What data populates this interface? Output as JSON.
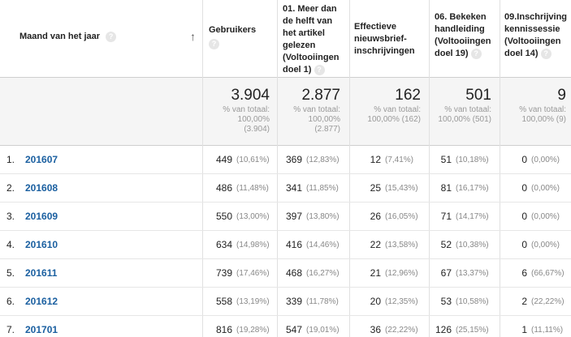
{
  "columns": {
    "month": "Maand van het jaar",
    "users": "Gebruikers",
    "goal1_l1": "01. Meer dan",
    "goal1_l2": "de helft van",
    "goal1_l3": "het artikel",
    "goal1_l4": "gelezen",
    "goal1_l5": "(Voltooiingen",
    "goal1_l6": "doel 1)",
    "news_l1": "Effectieve",
    "news_l2": "nieuwsbrief-",
    "news_l3": "inschrijvingen",
    "goal19_l1": "06. Bekeken",
    "goal19_l2": "handleiding",
    "goal19_l3": "(Voltooiingen",
    "goal19_l4": "doel 19)",
    "goal14_l1": "09.Inschrijving",
    "goal14_l2": "kennissessie",
    "goal14_l3": "(Voltooiingen",
    "goal14_l4": "doel 14)"
  },
  "help_glyph": "?",
  "sort_glyph": "↑",
  "totals": [
    {
      "value": "3.904",
      "l1": "% van totaal:",
      "l2": "100,00%",
      "l3": "(3.904)"
    },
    {
      "value": "2.877",
      "l1": "% van totaal:",
      "l2": "100,00%",
      "l3": "(2.877)"
    },
    {
      "value": "162",
      "l1": "% van totaal:",
      "l2": "100,00% (162)",
      "l3": ""
    },
    {
      "value": "501",
      "l1": "% van totaal:",
      "l2": "100,00% (501)",
      "l3": ""
    },
    {
      "value": "9",
      "l1": "% van totaal:",
      "l2": "100,00% (9)",
      "l3": ""
    }
  ],
  "rows": [
    {
      "idx": "1.",
      "month": "201607",
      "c": [
        [
          "449",
          "(10,61%)"
        ],
        [
          "369",
          "(12,83%)"
        ],
        [
          "12",
          "(7,41%)"
        ],
        [
          "51",
          "(10,18%)"
        ],
        [
          "0",
          "(0,00%)"
        ]
      ]
    },
    {
      "idx": "2.",
      "month": "201608",
      "c": [
        [
          "486",
          "(11,48%)"
        ],
        [
          "341",
          "(11,85%)"
        ],
        [
          "25",
          "(15,43%)"
        ],
        [
          "81",
          "(16,17%)"
        ],
        [
          "0",
          "(0,00%)"
        ]
      ]
    },
    {
      "idx": "3.",
      "month": "201609",
      "c": [
        [
          "550",
          "(13,00%)"
        ],
        [
          "397",
          "(13,80%)"
        ],
        [
          "26",
          "(16,05%)"
        ],
        [
          "71",
          "(14,17%)"
        ],
        [
          "0",
          "(0,00%)"
        ]
      ]
    },
    {
      "idx": "4.",
      "month": "201610",
      "c": [
        [
          "634",
          "(14,98%)"
        ],
        [
          "416",
          "(14,46%)"
        ],
        [
          "22",
          "(13,58%)"
        ],
        [
          "52",
          "(10,38%)"
        ],
        [
          "0",
          "(0,00%)"
        ]
      ]
    },
    {
      "idx": "5.",
      "month": "201611",
      "c": [
        [
          "739",
          "(17,46%)"
        ],
        [
          "468",
          "(16,27%)"
        ],
        [
          "21",
          "(12,96%)"
        ],
        [
          "67",
          "(13,37%)"
        ],
        [
          "6",
          "(66,67%)"
        ]
      ]
    },
    {
      "idx": "6.",
      "month": "201612",
      "c": [
        [
          "558",
          "(13,19%)"
        ],
        [
          "339",
          "(11,78%)"
        ],
        [
          "20",
          "(12,35%)"
        ],
        [
          "53",
          "(10,58%)"
        ],
        [
          "2",
          "(22,22%)"
        ]
      ]
    },
    {
      "idx": "7.",
      "month": "201701",
      "c": [
        [
          "816",
          "(19,28%)"
        ],
        [
          "547",
          "(19,01%)"
        ],
        [
          "36",
          "(22,22%)"
        ],
        [
          "126",
          "(25,15%)"
        ],
        [
          "1",
          "(11,11%)"
        ]
      ]
    }
  ]
}
